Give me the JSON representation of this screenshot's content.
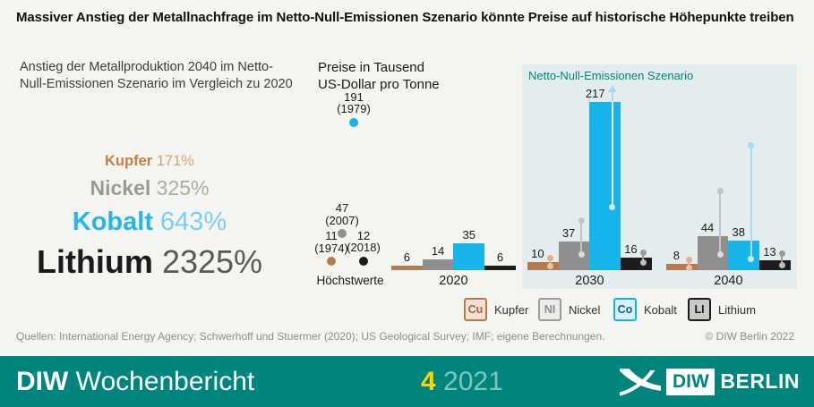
{
  "header": {
    "title": "Massiver Anstieg der Metallnachfrage im Netto-Null-Emissionen Szenario könnte Preise auf historische Höhepunkte treiben"
  },
  "intro": {
    "description_line1": "Anstieg der Metallproduktion 2040 im Netto-",
    "description_line2": "Null-Emissionen Szenario im Vergleich zu 2020"
  },
  "growth": [
    {
      "name": "Kupfer",
      "value": "171%",
      "name_color": "#c28144",
      "value_color": "#cfa379"
    },
    {
      "name": "Nickel",
      "value": "325%",
      "name_color": "#9a9a9a",
      "value_color": "#ababab"
    },
    {
      "name": "Kobalt",
      "value": "643%",
      "name_color": "#25b6ea",
      "value_color": "#79cef1"
    },
    {
      "name": "Lithium",
      "value": "2325%",
      "name_color": "#1a1a1a",
      "value_color": "#595959"
    }
  ],
  "price_header": {
    "line1": "Preise in Tausend",
    "line2": "US-Dollar pro Tonne"
  },
  "chart_data": {
    "type": "bar",
    "title": "Preise in Tausend US-Dollar pro Tonne",
    "categories": [
      "2020",
      "2030",
      "2040"
    ],
    "scenario_label": "Netto-Null-Emissionen Szenario",
    "scenario_years": [
      "2030",
      "2040"
    ],
    "peaks_label": "Höchstwerte",
    "grid": false,
    "ylim": [
      0,
      230
    ],
    "series": [
      {
        "name": "Kupfer",
        "color": "#b57a52",
        "pin_color": "#e3b18e",
        "anchor_color": "#e9c3a6",
        "values": [
          6,
          10,
          8
        ],
        "peak": {
          "value": 11,
          "year": "1974"
        },
        "range_pins_est": [
          null,
          {
            "low": 5,
            "high": 16
          },
          {
            "low": 3,
            "high": 13
          }
        ]
      },
      {
        "name": "Nickel",
        "color": "#8f8f8f",
        "pin_color": "#c3c3c3",
        "anchor_color": "#dcdcdc",
        "values": [
          14,
          37,
          44
        ],
        "peak": {
          "value": 47,
          "year": "2007"
        },
        "range_pins_est": [
          null,
          {
            "low": 20,
            "high": 64
          },
          {
            "low": 20,
            "high": 102
          }
        ]
      },
      {
        "name": "Kobalt",
        "color": "#17b4e9",
        "pin_color": "#a9d9f3",
        "anchor_color": "#c7e7f7",
        "values": [
          35,
          217,
          38
        ],
        "peak": {
          "value": 191,
          "year": "1979"
        },
        "range_pins_est": [
          null,
          {
            "low": 82,
            "high": 230,
            "arrow": true
          },
          {
            "low": 14,
            "high": 161
          }
        ]
      },
      {
        "name": "Lithium",
        "color": "#1c1c1c",
        "pin_color": "#9a9a9a",
        "anchor_color": "#bdbdbd",
        "values": [
          6,
          16,
          13
        ],
        "peak": {
          "value": 12,
          "year": "2018"
        },
        "range_pins_est": [
          null,
          {
            "low": 10,
            "high": 23
          },
          {
            "low": 6,
            "high": 21
          }
        ]
      }
    ]
  },
  "legend": [
    {
      "symbol": "Cu",
      "label": "Kupfer",
      "border": "#b57a52",
      "bg": "#f3e1d3",
      "text": "#aa6434"
    },
    {
      "symbol": "NI",
      "label": "Nickel",
      "border": "#9b9b9b",
      "bg": "#ececec",
      "text": "#8f8f8f"
    },
    {
      "symbol": "Co",
      "label": "Kobalt",
      "border": "#17b4e9",
      "bg": "#d9f1fb",
      "text": "#11607a"
    },
    {
      "symbol": "LI",
      "label": "Lithium",
      "border": "#1a1a1a",
      "bg": "#c9c9c9",
      "text": "#1a1a1a"
    }
  ],
  "sources": {
    "text": "Quellen: International Energy Agency; Schwerhoff und Stuermer (2020); US Geological Survey; IMF; eigene Berechnungen.",
    "copyright": "© DIW Berlin 2022"
  },
  "footer": {
    "brand_bold": "DIW",
    "brand_rest": "Wochenbericht",
    "issue_number": "4",
    "issue_year": "2021",
    "logo_diw": "DIW",
    "logo_berlin": "BERLIN",
    "bg": "#00857c",
    "number_color": "#ffd500",
    "year_color": "#7fc6bf"
  }
}
